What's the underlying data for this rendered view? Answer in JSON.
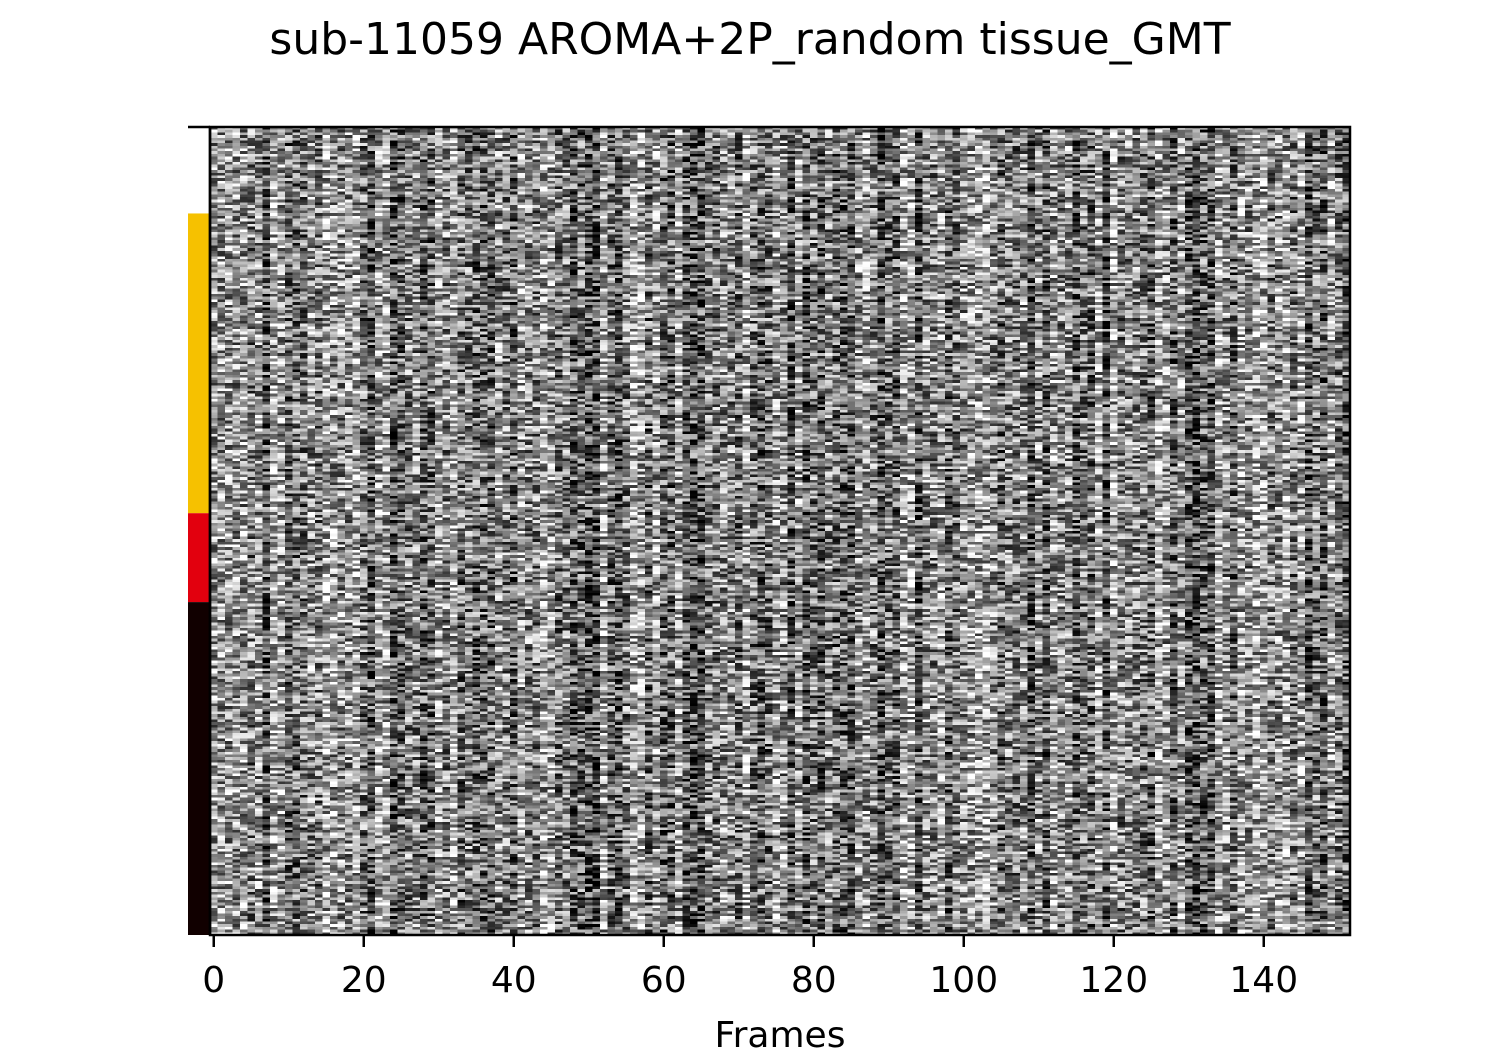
{
  "chart_data": {
    "type": "heatmap",
    "title": "sub-11059 AROMA+2P_random tissue_GMT",
    "xlabel": "Frames",
    "ylabel": "",
    "xlim": [
      -0.5,
      151.5
    ],
    "x_ticks": [
      0,
      20,
      40,
      60,
      80,
      100,
      120,
      140
    ],
    "x_tick_labels": [
      "0",
      "20",
      "40",
      "60",
      "80",
      "100",
      "120",
      "140"
    ],
    "n_frames": 152,
    "colormap": "gray",
    "grid": false,
    "tissue_segments": [
      {
        "fraction": 0.107,
        "color": "#ffffff"
      },
      {
        "fraction": 0.371,
        "color": "#f6c100"
      },
      {
        "fraction": 0.11,
        "color": "#e2000e"
      },
      {
        "fraction": 0.412,
        "color": "#110000"
      }
    ]
  }
}
